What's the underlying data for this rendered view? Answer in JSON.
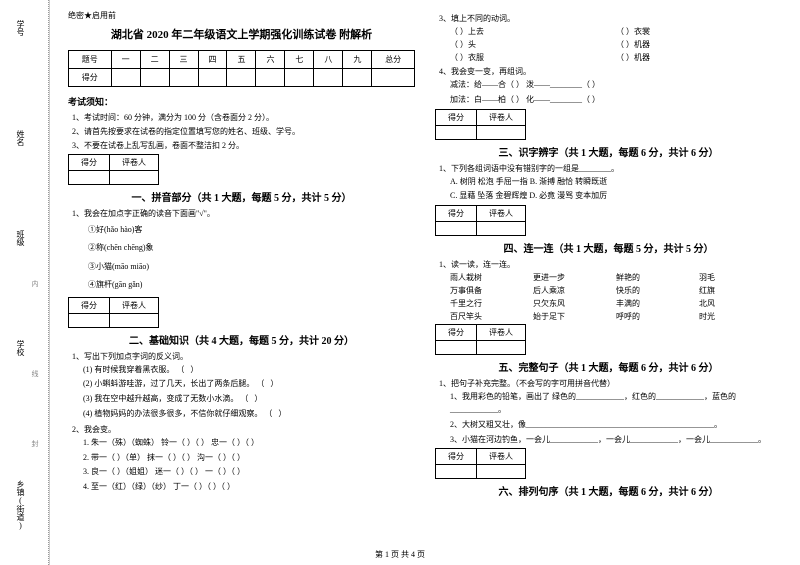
{
  "margin": {
    "labels": [
      "学号",
      "姓名",
      "班级",
      "学校",
      "乡镇(街道)"
    ],
    "vtexts": [
      "内",
      "线",
      "封"
    ]
  },
  "header": {
    "confidential": "绝密★启用前",
    "main_title": "湖北省 2020 年二年级语文上学期强化训练试卷  附解析"
  },
  "score_table": {
    "row1": [
      "题号",
      "一",
      "二",
      "三",
      "四",
      "五",
      "六",
      "七",
      "八",
      "九",
      "总分"
    ],
    "row2": [
      "得分",
      "",
      "",
      "",
      "",
      "",
      "",
      "",
      "",
      "",
      ""
    ]
  },
  "exam_notice": {
    "title": "考试须知：",
    "rules": [
      "1、考试时间：60 分钟，满分为 100 分（含卷面分 2 分）。",
      "2、请首先按要求在试卷的指定位置填写您的姓名、班级、学号。",
      "3、不要在试卷上乱写乱画，卷面不整洁扣 2 分。"
    ]
  },
  "score_box_header": [
    "得分",
    "评卷人"
  ],
  "sections": {
    "s1": {
      "title": "一、拼音部分（共 1 大题，每题 5 分，共计 5 分）",
      "q1": "1、我会在加点字正确的读音下面画\"√\"。",
      "items": [
        "①好(hǎo  hào)客",
        "②称(chēn  chēng)象",
        "③小猫(māo  miāo)",
        "④旗杆(gān  gǎn)"
      ]
    },
    "s2": {
      "title": "二、基础知识（共 4 大题，每题 5 分，共计 20 分）",
      "q1": "1、写出下列加点字词的反义词。",
      "items1": [
        "(1) 有时候我穿着黑衣服。",
        "(2) 小蝌蚪游哇游，过了几天，长出了两条后腿。",
        "(3) 我在空中越升越高，变成了无数小水滴。",
        "(4) 植物妈妈的办法很多很多，不信你就仔细观察。"
      ],
      "q2": "2、我会变。",
      "items2": [
        "1. 朱一（殊）（蜘蛛）   铃一（    ）（    ）   忠一（    ）（    ）",
        "2. 带一（   ）（单）   抹一（    ）（    ）   沟一（    ）（    ）",
        "3. 良一（   ）（姐姐）   迷一（    ）（    ）   一（    ）（    ）",
        "4. 至一（红）（绿）（纱）   丁一（    ）（    ）（    ）"
      ],
      "q3": "3、填上不同的动词。",
      "items3": [
        {
          "a": "（     ）上去",
          "b": "（     ）衣裳"
        },
        {
          "a": "（     ）头",
          "b": "（     ）机器"
        },
        {
          "a": "（     ）衣服",
          "b": "（     ）机器"
        }
      ],
      "q4": "4、我会变一变，再组词。",
      "items4": [
        "减法：给——合（       ）      泼——________（       ）",
        "加法：白——柏（       ）      化——________（       ）"
      ]
    },
    "s3": {
      "title": "三、识字辨字（共 1 大题，每题 6 分，共计 6 分）",
      "q1": "1、下列各组词语中没有错别字的一组是________。",
      "options": [
        "A. 树阴    松泡    手屈一指    B. 渐搏    融恰    转瞬既逝",
        "C. 显藉    坠落    金碧辉煌    D. 必竟    漫骂    变本加厉"
      ]
    },
    "s4": {
      "title": "四、连一连（共 1 大题，每题 5 分，共计 5 分）",
      "q1": "1、读一读，连一连。",
      "items": [
        {
          "a": "雨人栽树",
          "b": "更进一步",
          "c": "鲜艳的",
          "d": "羽毛"
        },
        {
          "a": "万事俱备",
          "b": "后人乘凉",
          "c": "快乐的",
          "d": "红旗"
        },
        {
          "a": "千里之行",
          "b": "只欠东风",
          "c": "丰满的",
          "d": "北风"
        },
        {
          "a": "百尺竿头",
          "b": "始于足下",
          "c": "呼呼的",
          "d": "时光"
        }
      ]
    },
    "s5": {
      "title": "五、完整句子（共 1 大题，每题 6 分，共计 6 分）",
      "q1": "1、把句子补充完整。（不会写的字可用拼音代替）",
      "items": [
        "1、我用彩色的铅笔，画出了 绿色的____________，红色的____________，蓝色的____________。",
        "2、大树又粗又壮，像_______________________________________________。",
        "3、小猫在河边钓鱼，一会儿____________，一会儿____________，一会儿____________。"
      ]
    },
    "s6": {
      "title": "六、排列句序（共 1 大题，每题 6 分，共计 6 分）"
    }
  },
  "footer": "第 1 页 共 4 页"
}
